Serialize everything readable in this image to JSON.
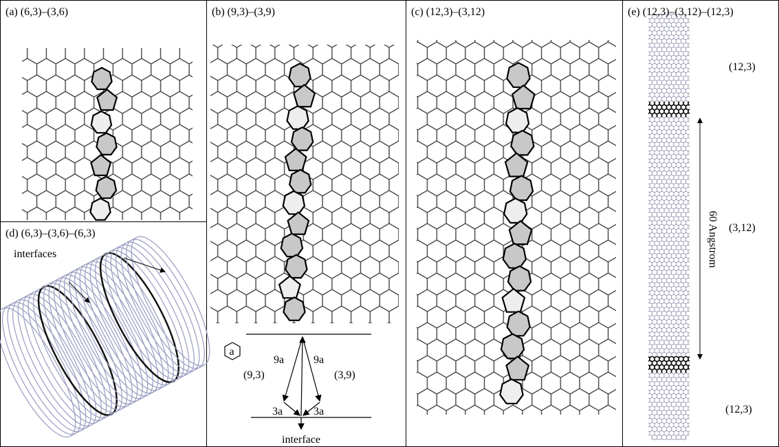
{
  "panel_a": {
    "label": "(a) (6,3)–(3,6)"
  },
  "panel_b": {
    "label": "(b) (9,3)–(3,9)",
    "hexagon_label": "a",
    "left_length": "9a",
    "right_length": "9a",
    "left_chirality": "(9,3)",
    "right_chirality": "(3,9)",
    "left_offset": "3a",
    "right_offset": "3a",
    "interface_label": "interface"
  },
  "panel_c": {
    "label": "(c) (12,3)–(3,12)"
  },
  "panel_d": {
    "label": "(d) (6,3)–(3,6)–(6,3)",
    "interfaces_label": "interfaces"
  },
  "panel_e": {
    "label": "(e) (12,3)–(3,12)–(12,3)",
    "top_segment": "(12,3)",
    "middle_segment": "(3,12)",
    "length_label": "60 Angstrom",
    "bottom_segment": "(12,3)"
  }
}
